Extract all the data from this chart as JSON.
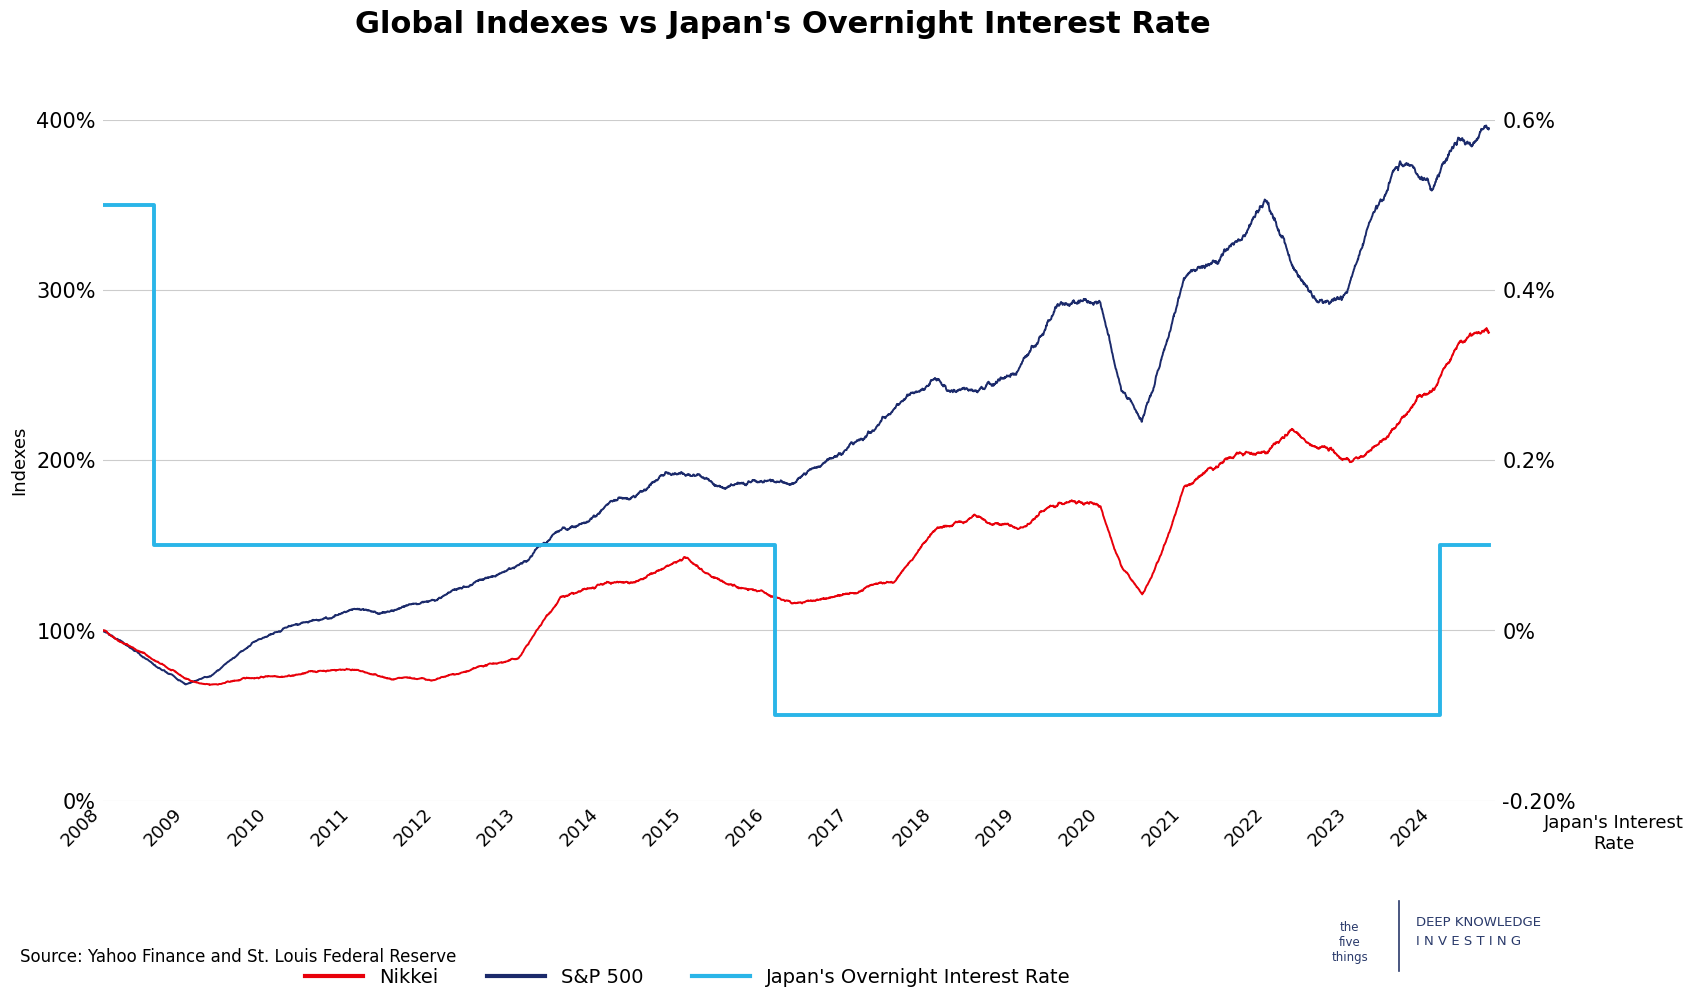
{
  "title": "Global Indexes vs Japan's Overnight Interest Rate",
  "xlabel_left": "Indexes",
  "xlabel_right": "Japan's Interest\nRate",
  "source_text": "Source: Yahoo Finance and St. Louis Federal Reserve",
  "background_color": "#ffffff",
  "title_fontsize": 22,
  "title_fontweight": "bold",
  "left_ylim": [
    0,
    400
  ],
  "left_yticks": [
    0,
    100,
    200,
    300,
    400
  ],
  "right_ylim": [
    -0.2,
    0.6
  ],
  "right_yticks": [
    -0.2,
    0.0,
    0.2,
    0.4,
    0.6
  ],
  "right_ytick_labels": [
    "-0.20%",
    "0%",
    "0.2%",
    "0.4%",
    "0.6%"
  ],
  "nikkei_color": "#e8000a",
  "sp500_color": "#1b2a6b",
  "interest_color": "#2ab5e8",
  "interest_rate_steps": {
    "dates": [
      2008.0,
      2008.62,
      2008.62,
      2010.83,
      2010.83,
      2016.08,
      2016.08,
      2024.08,
      2024.08,
      2024.67
    ],
    "values": [
      0.5,
      0.5,
      0.1,
      0.1,
      0.1,
      0.1,
      -0.1,
      -0.1,
      0.1,
      0.1
    ]
  },
  "legend_labels": [
    "Nikkei",
    "S&P 500",
    "Japan's Overnight Interest Rate"
  ],
  "legend_colors": [
    "#e8000a",
    "#1b2a6b",
    "#2ab5e8"
  ],
  "dki_color": "#2a3a6b",
  "seed": 42,
  "n_nikkei": 4200,
  "n_sp500": 4200
}
